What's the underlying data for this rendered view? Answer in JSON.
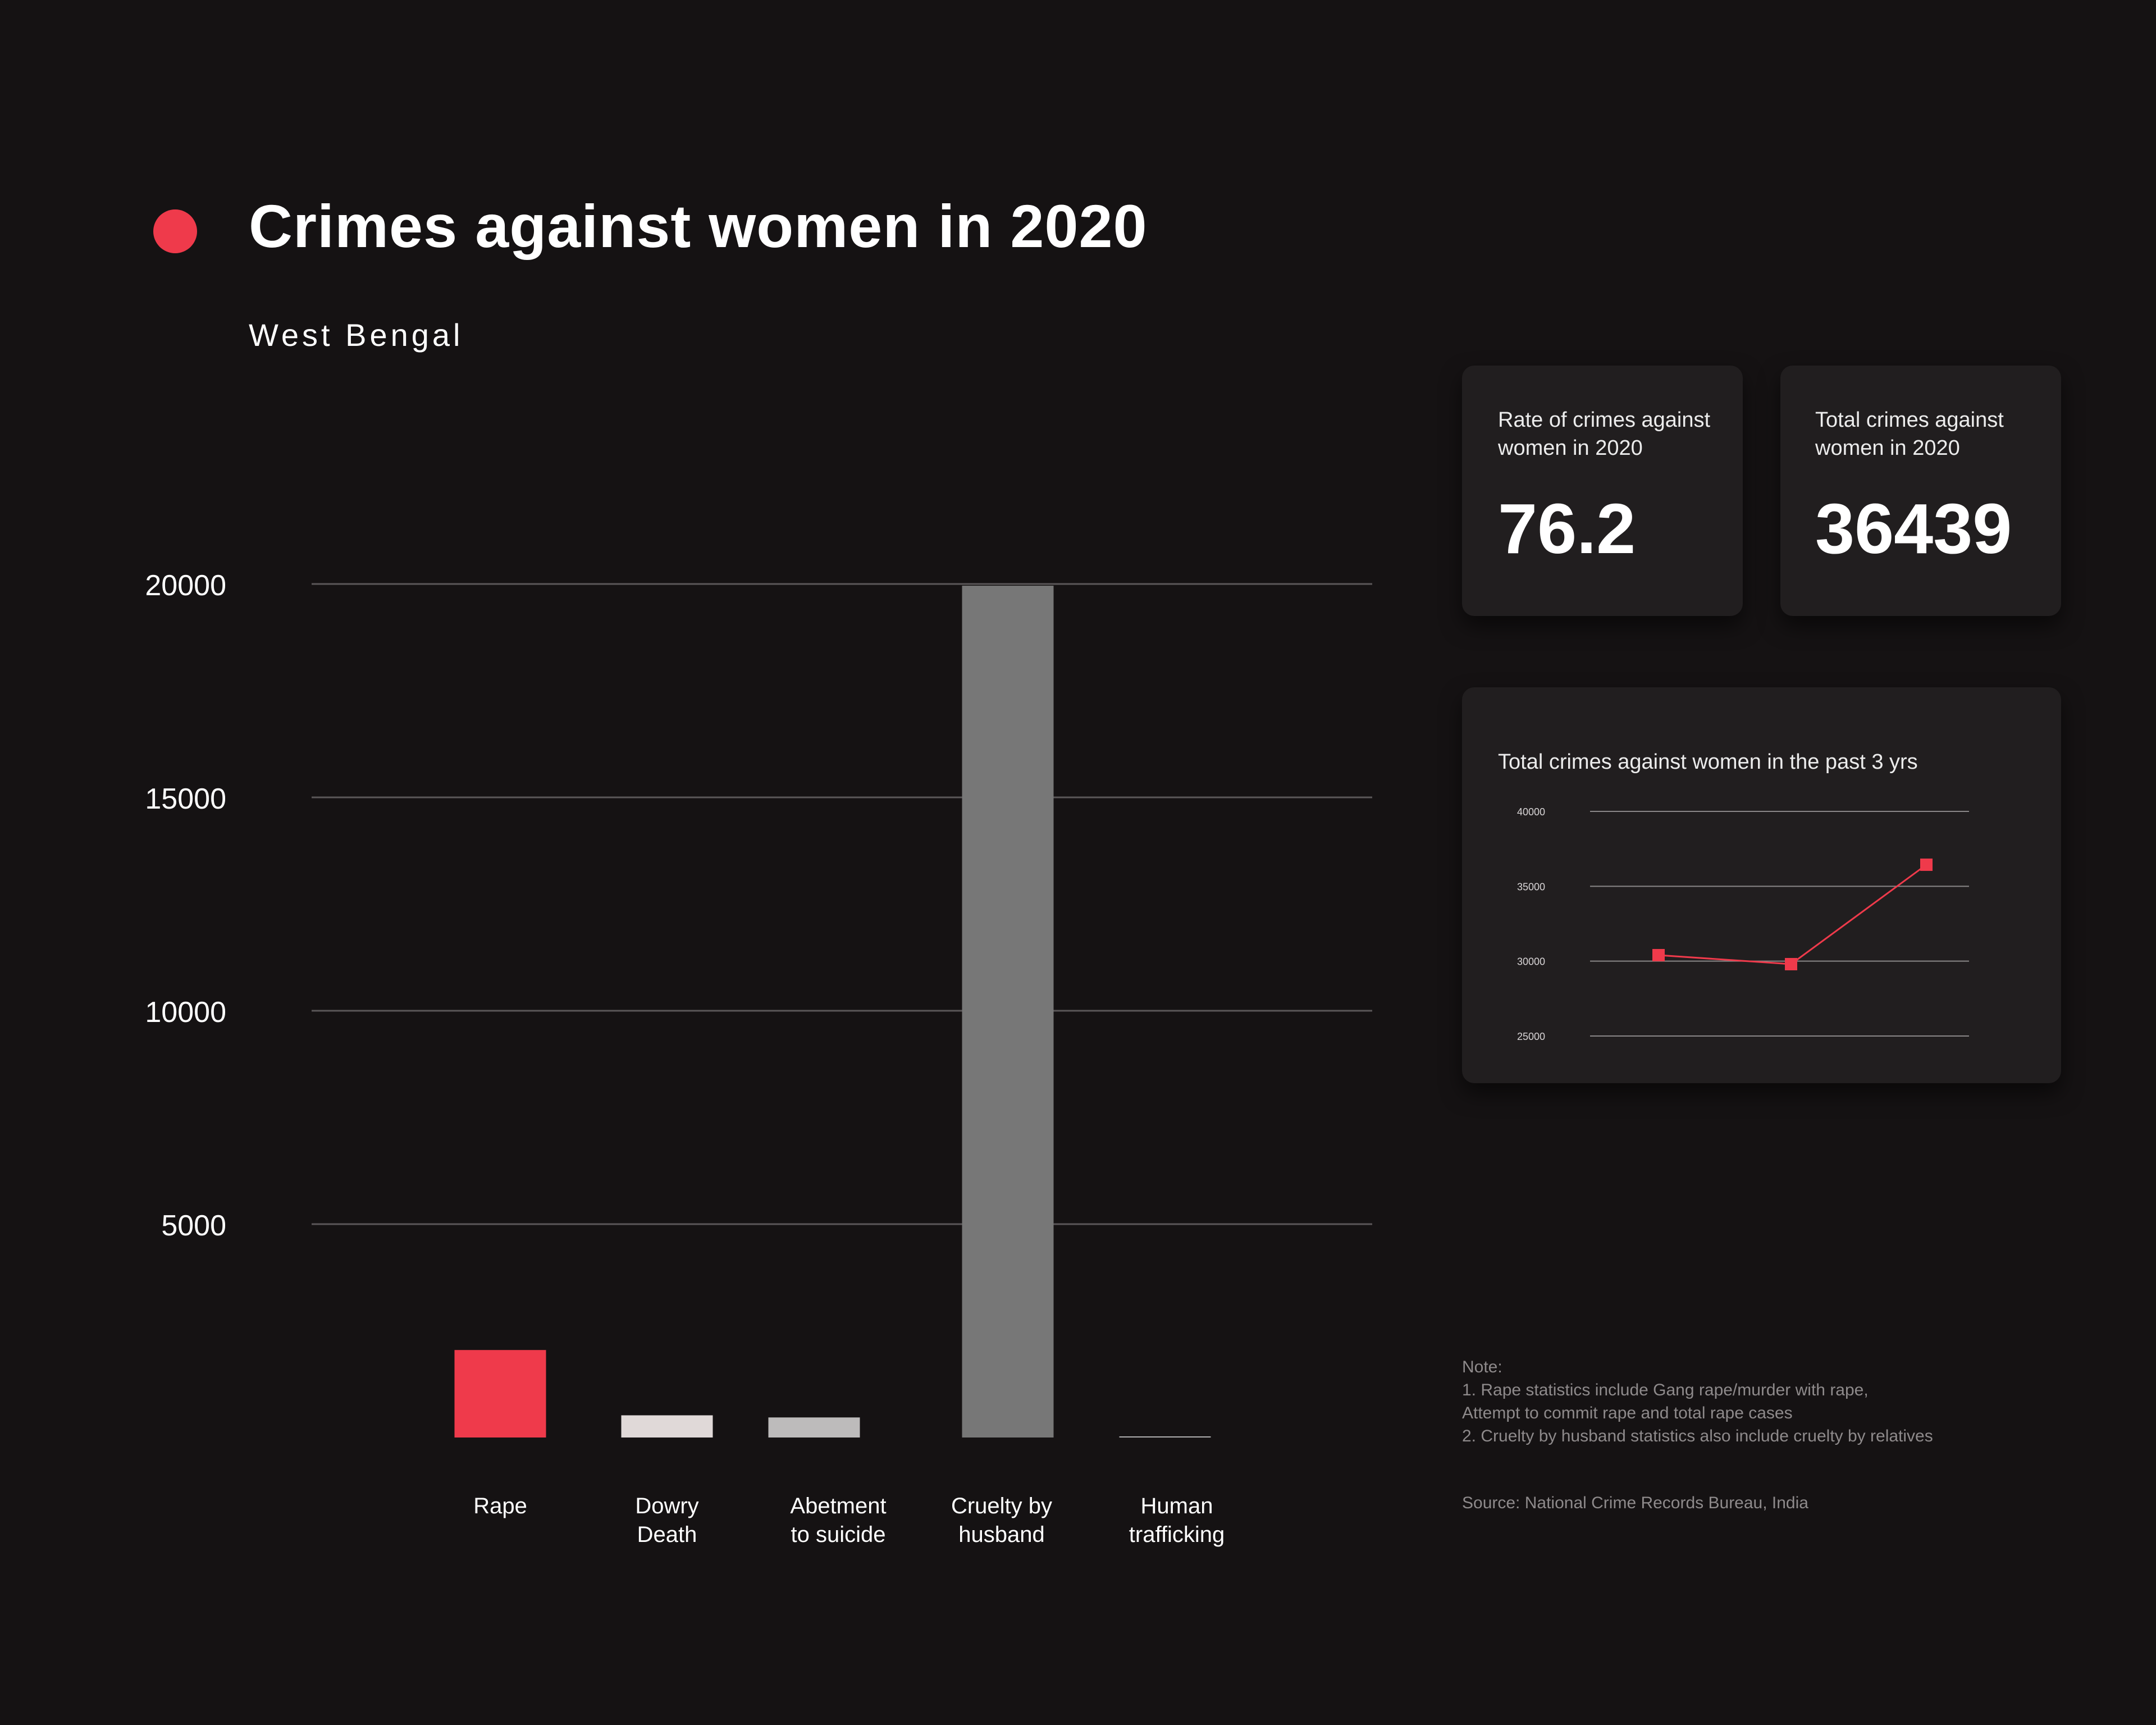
{
  "header": {
    "title": "Crimes against women in 2020",
    "subtitle": "West Bengal"
  },
  "colors": {
    "background": "#151213",
    "accent": "#ef3a4b",
    "card": "#211e1f",
    "gridline": "#5a5758"
  },
  "cards": {
    "rate": {
      "label_lines": [
        "Rate of crimes against",
        "women in 2020"
      ],
      "value": "76.2"
    },
    "total": {
      "label_lines": [
        "Total crimes against",
        "women in 2020"
      ],
      "value": "36439"
    },
    "trend": {
      "label": "Total crimes against women in the past 3 yrs"
    }
  },
  "notes": {
    "lines": [
      "Note:",
      "1. Rape statistics include Gang rape/murder with rape,",
      "Attempt to commit rape and total rape cases",
      "2. Cruelty by husband statistics also include cruelty by relatives"
    ],
    "source": "Source: National Crime Records Bureau, India"
  },
  "chart_data": [
    {
      "type": "bar",
      "categories": [
        [
          "Rape"
        ],
        [
          "Dowry",
          "Death"
        ],
        [
          "Abetment",
          "to suicide"
        ],
        [
          "Cruelty by",
          "husband"
        ],
        [
          "Human",
          "trafficking"
        ]
      ],
      "values": [
        2050,
        520,
        470,
        19960,
        20
      ],
      "colors": [
        "#ef3a4b",
        "#e0d9d8",
        "#bdbbbb",
        "#777777",
        "#b0b0b0"
      ],
      "yticks": [
        5000,
        10000,
        15000,
        20000
      ],
      "ylim": [
        0,
        20000
      ],
      "grid": true,
      "title": "",
      "xlabel": "",
      "ylabel": ""
    },
    {
      "type": "line",
      "title": "Total crimes against women in the past 3 yrs",
      "x_count": 3,
      "values": [
        30400,
        29800,
        36439
      ],
      "yticks": [
        25000,
        30000,
        35000,
        40000
      ],
      "ylim": [
        25000,
        40000
      ],
      "color": "#ef3a4b",
      "grid": true,
      "marker": "square"
    }
  ]
}
